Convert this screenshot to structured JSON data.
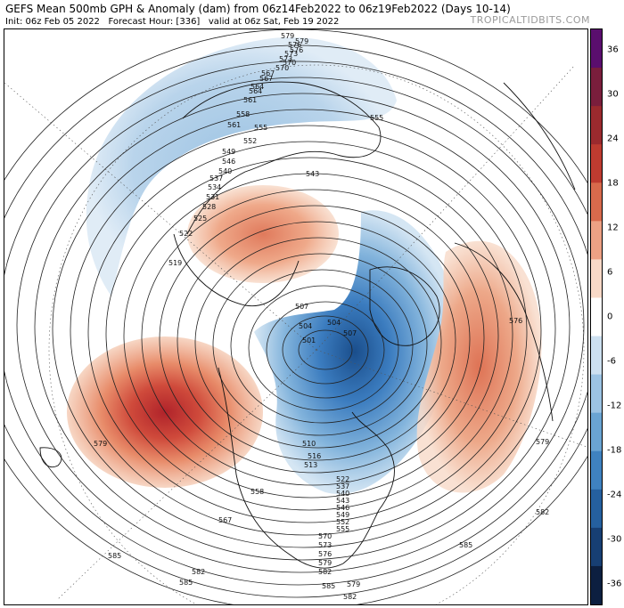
{
  "header": {
    "title": "GEFS Mean 500mb GPH & Anomaly (dam) from 06z14Feb2022 to 06z19Feb2022 (Days 10-14)",
    "init": "Init: 06z Feb 05 2022",
    "forecast_hour": "Forecast Hour: [336]",
    "valid": "valid at 06z Sat, Feb 19 2022",
    "brand": "TROPICALTIDBITS.COM"
  },
  "colorbar": {
    "ticks": [
      "36",
      "30",
      "24",
      "18",
      "12",
      "6",
      "0",
      "-6",
      "-12",
      "-18",
      "-24",
      "-30",
      "-36"
    ],
    "colors": [
      "#5a0e6e",
      "#7a1e3c",
      "#9b2a2e",
      "#be3b30",
      "#d86a4c",
      "#eda184",
      "#f8d9c7",
      "#ffffff",
      "#cde0f0",
      "#9cc3e3",
      "#6aa4d3",
      "#3f82c0",
      "#25609f",
      "#173f73",
      "#0c1f40"
    ]
  },
  "map": {
    "contour_labels": [
      "579",
      "576",
      "573",
      "570",
      "567",
      "564",
      "561",
      "558",
      "555",
      "552",
      "549",
      "546",
      "543",
      "540",
      "537",
      "534",
      "531",
      "528",
      "525",
      "522",
      "519",
      "516",
      "513",
      "510",
      "507",
      "504",
      "501",
      "579",
      "582",
      "585",
      "558",
      "555",
      "567",
      "579",
      "570",
      "573",
      "576",
      "579",
      "582",
      "585",
      "522",
      "537",
      "540",
      "543",
      "546",
      "549",
      "552",
      "555",
      "561",
      "564",
      "567",
      "570",
      "573",
      "576",
      "579",
      "582",
      "585",
      "576",
      "579",
      "582",
      "585",
      "507",
      "504"
    ]
  }
}
